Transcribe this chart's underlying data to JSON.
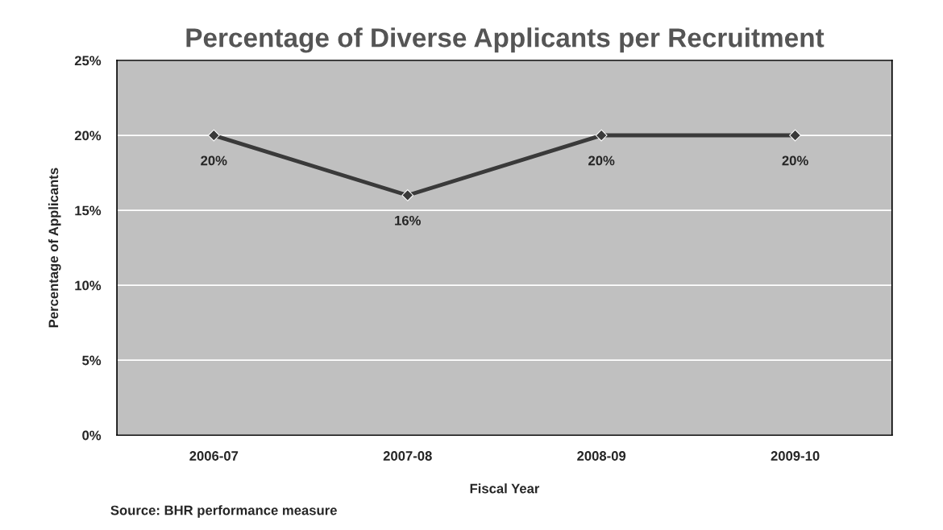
{
  "chart_data": {
    "type": "line",
    "title": "Percentage of Diverse Applicants per Recruitment",
    "xlabel": "Fiscal Year",
    "ylabel": "Percentage of Applicants",
    "categories": [
      "2006-07",
      "2007-08",
      "2008-09",
      "2009-10"
    ],
    "series": [
      {
        "color": "#3a3a3a",
        "values": [
          20,
          16,
          20,
          20
        ],
        "value_labels": [
          "20%",
          "16%",
          "20%",
          "20%"
        ]
      }
    ],
    "ylim": [
      0,
      25
    ],
    "yticks": [
      {
        "value": 0,
        "label": "0%"
      },
      {
        "value": 5,
        "label": "5%"
      },
      {
        "value": 10,
        "label": "10%"
      },
      {
        "value": 15,
        "label": "15%"
      },
      {
        "value": 20,
        "label": "20%"
      },
      {
        "value": 25,
        "label": "25%"
      }
    ],
    "grid": "y",
    "marker": "diamond",
    "line_style": "solid",
    "legend": false,
    "annotations": [
      "Source: BHR performance measure"
    ]
  }
}
